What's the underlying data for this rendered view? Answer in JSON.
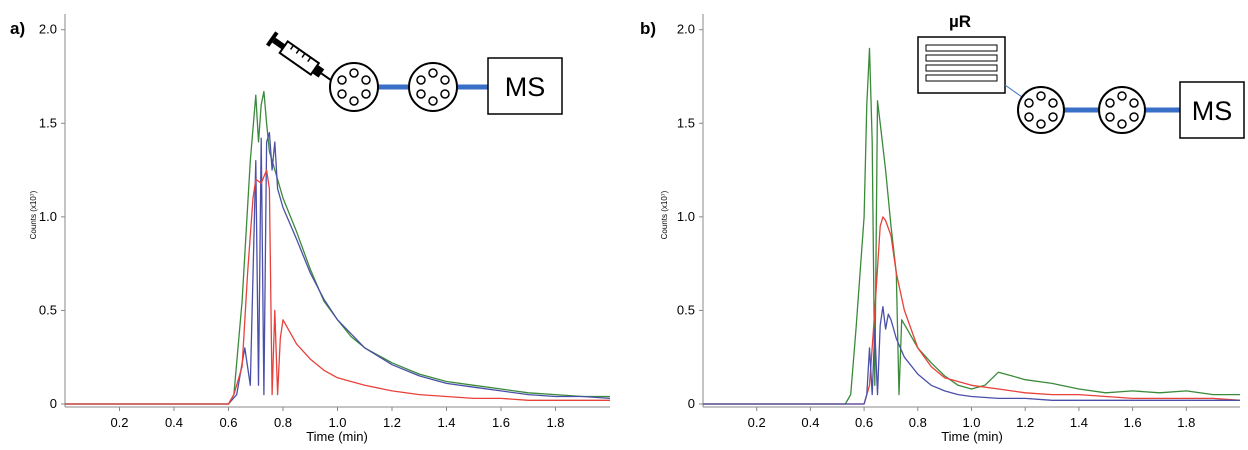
{
  "chart_data": [
    {
      "type": "line",
      "panel_label": "a)",
      "xlabel": "Time (min)",
      "ylabel": "Counts (x10⁷)",
      "xlim": [
        0.0,
        2.0
      ],
      "ylim": [
        0.0,
        2.1
      ],
      "x_ticks": [
        0.2,
        0.4,
        0.6,
        0.8,
        1.0,
        1.2,
        1.4,
        1.6,
        1.8
      ],
      "x_tick_labels": [
        "0.2",
        "0.4",
        "0.6",
        "0.8",
        "1.0",
        "1.2",
        "1.4",
        "1.6",
        "1.8"
      ],
      "y_ticks": [
        0,
        0.5,
        1.0,
        1.5,
        2.0
      ],
      "y_tick_labels": [
        "0",
        "0.5",
        "1.0",
        "1.5",
        "2.0"
      ],
      "grid": false,
      "legend": "none",
      "series": [
        {
          "color": "#3a8a3a",
          "x": [
            0.0,
            0.6,
            0.62,
            0.65,
            0.68,
            0.7,
            0.71,
            0.72,
            0.73,
            0.74,
            0.75,
            0.76,
            0.78,
            0.8,
            0.85,
            0.9,
            0.95,
            1.0,
            1.05,
            1.1,
            1.2,
            1.3,
            1.4,
            1.5,
            1.6,
            1.7,
            1.8,
            1.9,
            2.0
          ],
          "y": [
            0.0,
            0.0,
            0.05,
            0.55,
            1.3,
            1.65,
            1.4,
            1.6,
            1.67,
            1.5,
            1.35,
            1.3,
            1.2,
            1.1,
            0.92,
            0.72,
            0.55,
            0.45,
            0.36,
            0.3,
            0.22,
            0.16,
            0.12,
            0.1,
            0.08,
            0.06,
            0.05,
            0.04,
            0.04
          ]
        },
        {
          "color": "#4b4fa8",
          "x": [
            0.0,
            0.6,
            0.63,
            0.66,
            0.68,
            0.7,
            0.71,
            0.72,
            0.73,
            0.74,
            0.75,
            0.76,
            0.77,
            0.78,
            0.8,
            0.85,
            0.9,
            0.95,
            1.0,
            1.1,
            1.2,
            1.3,
            1.4,
            1.5,
            1.6,
            1.7,
            1.8,
            1.9,
            2.0
          ],
          "y": [
            0.0,
            0.0,
            0.05,
            0.3,
            0.1,
            1.3,
            0.1,
            1.42,
            0.05,
            1.4,
            1.45,
            1.25,
            1.4,
            1.15,
            1.05,
            0.88,
            0.7,
            0.56,
            0.45,
            0.3,
            0.21,
            0.15,
            0.11,
            0.09,
            0.07,
            0.05,
            0.04,
            0.04,
            0.03
          ]
        },
        {
          "color": "#e8413a",
          "x": [
            0.0,
            0.6,
            0.62,
            0.65,
            0.67,
            0.69,
            0.7,
            0.72,
            0.74,
            0.75,
            0.76,
            0.77,
            0.78,
            0.79,
            0.8,
            0.85,
            0.9,
            0.95,
            1.0,
            1.1,
            1.2,
            1.3,
            1.4,
            1.5,
            1.6,
            1.7,
            1.8,
            1.9,
            2.0
          ],
          "y": [
            0.0,
            0.0,
            0.05,
            0.2,
            0.7,
            1.1,
            1.2,
            1.18,
            1.25,
            1.15,
            0.05,
            0.5,
            0.05,
            0.35,
            0.45,
            0.32,
            0.24,
            0.18,
            0.14,
            0.1,
            0.07,
            0.05,
            0.04,
            0.03,
            0.03,
            0.02,
            0.02,
            0.02,
            0.02
          ]
        }
      ]
    },
    {
      "type": "line",
      "panel_label": "b)",
      "xlabel": "Time (min)",
      "ylabel": "Counts (x10⁷)",
      "xlim": [
        0.0,
        2.0
      ],
      "ylim": [
        0.0,
        2.1
      ],
      "x_ticks": [
        0.2,
        0.4,
        0.6,
        0.8,
        1.0,
        1.2,
        1.4,
        1.6,
        1.8
      ],
      "x_tick_labels": [
        "0.2",
        "0.4",
        "0.6",
        "0.8",
        "1.0",
        "1.2",
        "1.4",
        "1.6",
        "1.8"
      ],
      "y_ticks": [
        0,
        0.5,
        1.0,
        1.5,
        2.0
      ],
      "y_tick_labels": [
        "0",
        "0.5",
        "1.0",
        "1.5",
        "2.0"
      ],
      "grid": false,
      "legend": "none",
      "series": [
        {
          "color": "#3a8a3a",
          "x": [
            0.0,
            0.53,
            0.55,
            0.57,
            0.59,
            0.6,
            0.61,
            0.62,
            0.63,
            0.64,
            0.65,
            0.66,
            0.68,
            0.7,
            0.72,
            0.73,
            0.74,
            0.76,
            0.8,
            0.85,
            0.9,
            0.95,
            1.0,
            1.05,
            1.1,
            1.15,
            1.2,
            1.3,
            1.4,
            1.5,
            1.6,
            1.7,
            1.8,
            1.9,
            2.0
          ],
          "y": [
            0.0,
            0.0,
            0.05,
            0.4,
            0.8,
            1.0,
            1.6,
            1.9,
            1.4,
            0.1,
            1.62,
            1.5,
            1.25,
            0.95,
            0.7,
            0.05,
            0.45,
            0.4,
            0.3,
            0.22,
            0.15,
            0.1,
            0.08,
            0.1,
            0.17,
            0.15,
            0.13,
            0.11,
            0.08,
            0.06,
            0.07,
            0.06,
            0.07,
            0.05,
            0.05
          ]
        },
        {
          "color": "#e8413a",
          "x": [
            0.0,
            0.6,
            0.62,
            0.64,
            0.66,
            0.67,
            0.68,
            0.7,
            0.72,
            0.75,
            0.8,
            0.85,
            0.9,
            0.95,
            1.0,
            1.1,
            1.2,
            1.3,
            1.4,
            1.5,
            1.6,
            1.7,
            1.8,
            1.9,
            2.0
          ],
          "y": [
            0.0,
            0.0,
            0.1,
            0.5,
            0.95,
            1.0,
            0.98,
            0.9,
            0.7,
            0.5,
            0.3,
            0.2,
            0.14,
            0.12,
            0.1,
            0.08,
            0.06,
            0.05,
            0.05,
            0.04,
            0.03,
            0.03,
            0.03,
            0.03,
            0.02
          ]
        },
        {
          "color": "#4b4fa8",
          "x": [
            0.0,
            0.6,
            0.61,
            0.62,
            0.63,
            0.64,
            0.65,
            0.66,
            0.67,
            0.68,
            0.69,
            0.7,
            0.72,
            0.75,
            0.8,
            0.85,
            0.9,
            0.95,
            1.0,
            1.1,
            1.2,
            1.3,
            1.4,
            1.5,
            1.6,
            1.7,
            1.8,
            1.9,
            2.0
          ],
          "y": [
            0.0,
            0.0,
            0.05,
            0.3,
            0.05,
            0.4,
            0.05,
            0.42,
            0.52,
            0.4,
            0.48,
            0.45,
            0.35,
            0.25,
            0.16,
            0.1,
            0.07,
            0.05,
            0.04,
            0.03,
            0.03,
            0.02,
            0.02,
            0.02,
            0.02,
            0.02,
            0.02,
            0.02,
            0.02
          ]
        }
      ]
    }
  ],
  "diagrams": {
    "a": {
      "detector_label": "MS",
      "syringe_icon": "syringe-icon",
      "valve_icon": "valve-icon",
      "line_color": "#3a6fc8"
    },
    "b": {
      "reactor_label": "µR",
      "detector_label": "MS",
      "valve_icon": "valve-icon",
      "reactor_icon": "microreactor-icon",
      "line_color": "#3a6fc8"
    }
  }
}
